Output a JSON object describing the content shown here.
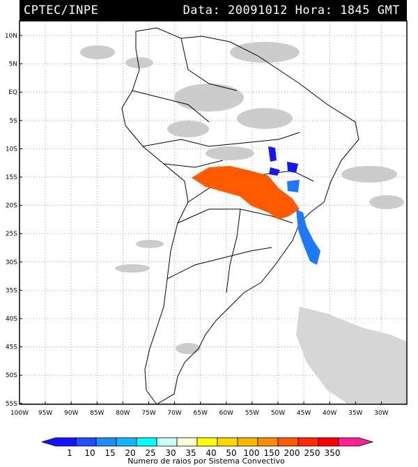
{
  "header": {
    "organization": "CPTEC/INPE",
    "date_label": "Data:",
    "date_value": "20091012",
    "time_label": "Hora:",
    "time_value": "1845",
    "time_zone": "GMT"
  },
  "map": {
    "lat_labels": [
      "10N",
      "5N",
      "EQ",
      "5S",
      "10S",
      "15S",
      "20S",
      "25S",
      "30S",
      "35S",
      "40S",
      "45S",
      "50S",
      "55S"
    ],
    "lon_labels": [
      "100W",
      "95W",
      "90W",
      "85W",
      "80W",
      "75W",
      "70W",
      "65W",
      "60W",
      "55W",
      "50W",
      "45W",
      "40W",
      "35W",
      "30W"
    ],
    "colors": {
      "frame": "#000000",
      "grid": "#9a9a9a",
      "land_border": "#000000",
      "cloud": "#c8c8c8"
    },
    "systems": [
      {
        "name": "central-brazil-orange-system",
        "color": "#ff5a00"
      },
      {
        "name": "southeast-blue-system",
        "color": "#1e78ff"
      },
      {
        "name": "north-blue-system",
        "color": "#1414ff"
      }
    ]
  },
  "legend": {
    "values": [
      "1",
      "10",
      "15",
      "20",
      "25",
      "30",
      "35",
      "40",
      "50",
      "100",
      "150",
      "200",
      "250",
      "350"
    ],
    "colors": [
      "#1414ff",
      "#1e50ff",
      "#1e8cff",
      "#14b4ff",
      "#00ffff",
      "#c8ffff",
      "#ffffd2",
      "#ffff00",
      "#ffd700",
      "#ffb400",
      "#ff8c00",
      "#ff5a00",
      "#ff2800",
      "#ff0000",
      "#ff1e96"
    ],
    "caption": "Numero de raios por Sistema Convectivo"
  }
}
